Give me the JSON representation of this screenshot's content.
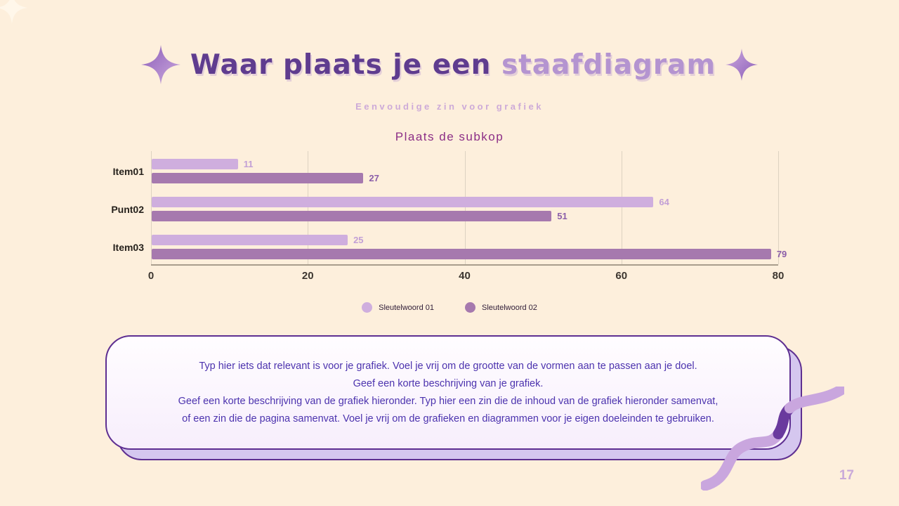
{
  "page": {
    "number": "17"
  },
  "header": {
    "title_main": "Waar plaats je een ",
    "title_accent": "staafdiagram",
    "subtitle": "Eenvoudige zin voor grafiek"
  },
  "chart": {
    "subtitle": "Plaats de subkop"
  },
  "chart_data": {
    "type": "bar",
    "orientation": "horizontal",
    "title": "Plaats de subkop",
    "categories": [
      "Item01",
      "Punt02",
      "Item03"
    ],
    "series": [
      {
        "name": "Sleutelwoord 01",
        "values": [
          11,
          64,
          25
        ],
        "color": "#cfaede",
        "label_color": "#c29fd6"
      },
      {
        "name": "Sleutelwoord 02",
        "values": [
          27,
          51,
          79
        ],
        "color": "#a679ae",
        "label_color": "#8b5ea9"
      }
    ],
    "x_ticks": [
      0,
      20,
      40,
      60,
      80
    ],
    "xlim": [
      0,
      80
    ],
    "grid": true,
    "legend_position": "bottom"
  },
  "description": {
    "lines": [
      "Typ hier iets dat relevant is voor je grafiek. Voel je vrij om de grootte van de vormen aan te passen aan je doel.",
      "Geef een korte beschrijving van je grafiek.",
      "Geef een korte beschrijving van de grafiek hieronder. Typ hier een zin die de inhoud van de grafiek hieronder samenvat,",
      "of een zin die de pagina samenvat. Voel je vrij om de grafieken en diagrammen voor je eigen doeleinden te gebruiken."
    ]
  },
  "colors": {
    "background": "#fdefdc",
    "title_main": "#5f3c8f",
    "title_accent": "#b494d0",
    "subtitle": "#cdaad8",
    "chart_subtitle": "#8c2e86",
    "card_border": "#5e2f91",
    "card_text": "#4c33ae",
    "page_number": "#c9a9d9"
  }
}
